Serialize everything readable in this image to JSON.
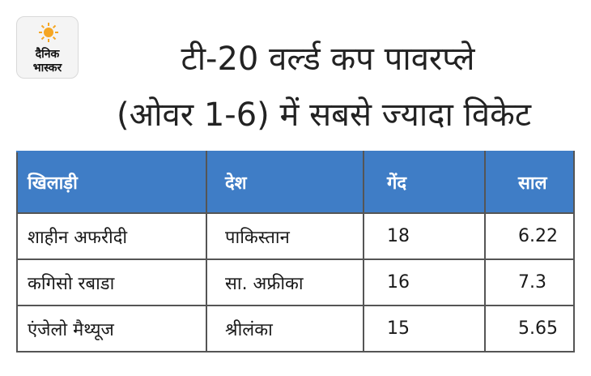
{
  "logo": {
    "line1": "दैनिक",
    "line2": "भास्कर"
  },
  "title": {
    "line1": "टी-20 वर्ल्ड कप पावरप्ले",
    "line2": "(ओवर 1-6) में सबसे ज्यादा विकेट"
  },
  "table": {
    "headers": [
      "खिलाड़ी",
      "देश",
      "गेंद",
      "साल"
    ],
    "rows": [
      [
        "शाहीन अफरीदी",
        "पाकिस्तान",
        "18",
        "6.22"
      ],
      [
        "कगिसो रबाडा",
        "सा. अफ्रीका",
        "16",
        "7.3"
      ],
      [
        "एंजेलो मैथ्यूज",
        "श्रीलंका",
        "15",
        "5.65"
      ]
    ],
    "header_color": "#3f7dc6"
  },
  "colors": {
    "sun": "#f5a623",
    "text": "#222222"
  }
}
